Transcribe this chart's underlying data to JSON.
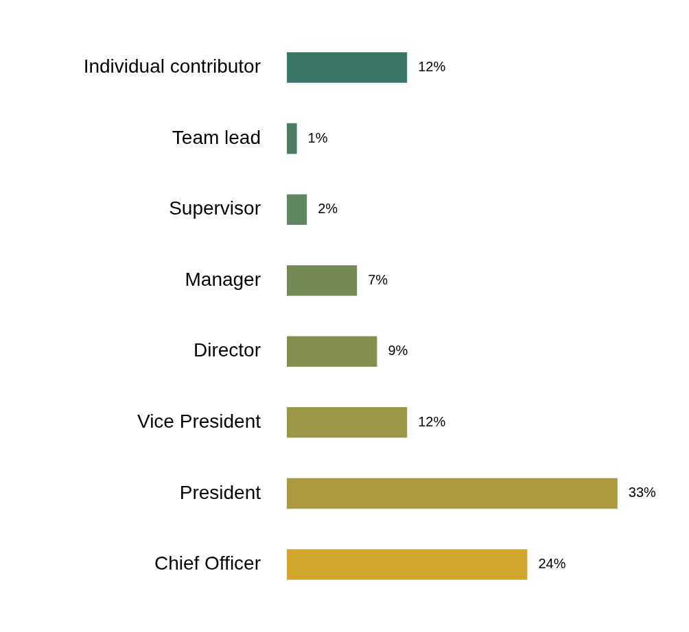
{
  "chart_data": {
    "type": "bar",
    "orientation": "horizontal",
    "categories": [
      "Individual contributor",
      "Team lead",
      "Supervisor",
      "Manager",
      "Director",
      "Vice President",
      "President",
      "Chief Officer"
    ],
    "values": [
      12,
      1,
      2,
      7,
      9,
      12,
      33,
      24
    ],
    "value_labels": [
      "12%",
      "1%",
      "2%",
      "7%",
      "9%",
      "12%",
      "33%",
      "24%"
    ],
    "colors": [
      "#3a7567",
      "#4a7d62",
      "#5e8660",
      "#738a55",
      "#858e4f",
      "#9a9747",
      "#ab9a40",
      "#d2a52f"
    ],
    "grid": false,
    "legend": false
  }
}
